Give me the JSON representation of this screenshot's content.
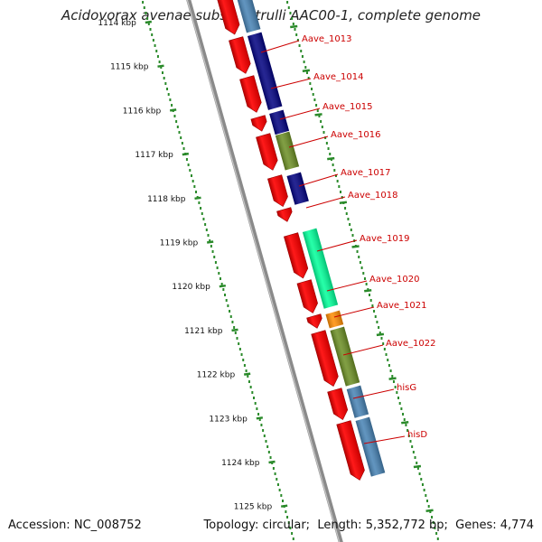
{
  "title": "Acidovorax avenae subsp. citrulli AAC00-1, complete genome",
  "footer": {
    "accession_label": "Accession:",
    "accession": "NC_008752",
    "topology_label": "Topology:",
    "topology": "circular",
    "length_label": "Length:",
    "length": "5,352,772 bp",
    "genes_label": "Genes:",
    "genes": "4,774"
  },
  "colors": {
    "cds_forward": "#ff0000",
    "backbone": "#888888",
    "tick": "#2a8a2a",
    "label": "#cc0000",
    "cog_navy": "#000080",
    "cog_olive": "#6b8e23",
    "cog_aqua": "#00ff99",
    "cog_orange": "#ff8c00",
    "cog_steel": "#4682b4"
  },
  "scale": {
    "unit": "kbp",
    "ticks": [
      "1114 kbp",
      "1115 kbp",
      "1116 kbp",
      "1117 kbp",
      "1118 kbp",
      "1119 kbp",
      "1120 kbp",
      "1121 kbp",
      "1122 kbp",
      "1123 kbp",
      "1124 kbp",
      "1125 kbp"
    ]
  },
  "genes": [
    {
      "label": "Aave_1013",
      "cog_color": "cog_navy"
    },
    {
      "label": "Aave_1014",
      "cog_color": "cog_navy"
    },
    {
      "label": "Aave_1015",
      "cog_color": "cog_navy"
    },
    {
      "label": "Aave_1016",
      "cog_color": "cog_olive"
    },
    {
      "label": "Aave_1017",
      "cog_color": "cog_navy"
    },
    {
      "label": "Aave_1018",
      "cog_color": ""
    },
    {
      "label": "Aave_1019",
      "cog_color": "cog_aqua"
    },
    {
      "label": "Aave_1020",
      "cog_color": "cog_aqua"
    },
    {
      "label": "Aave_1021",
      "cog_color": "cog_orange"
    },
    {
      "label": "Aave_1022",
      "cog_color": "cog_olive"
    },
    {
      "label": "hisG",
      "cog_color": "cog_steel"
    },
    {
      "label": "hisD",
      "cog_color": "cog_steel"
    }
  ]
}
